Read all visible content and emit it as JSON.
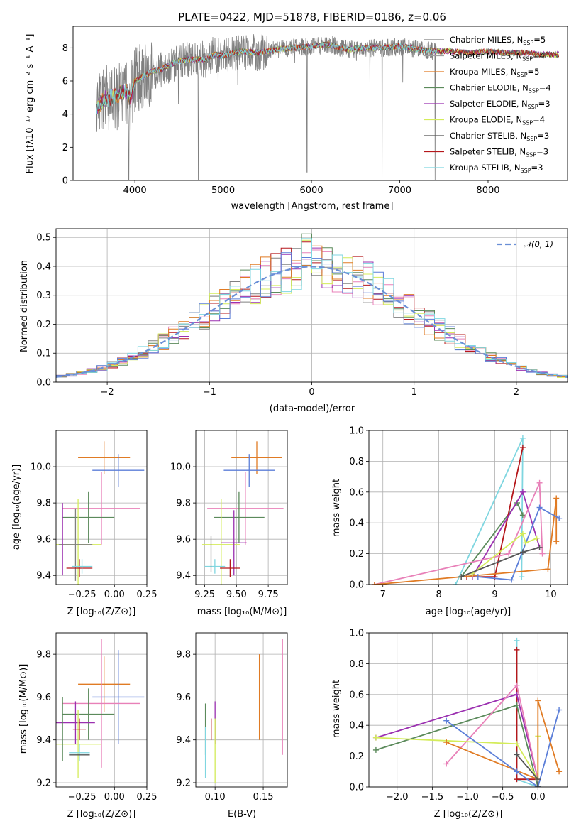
{
  "figure": {
    "title": "PLATE=0422, MJD=51878, FIBERID=0186, z=0.06",
    "colors": {
      "Chabrier MILES": "#808080",
      "Salpeter MILES": "#a0a0a0",
      "Kroupa MILES": "#e07b24",
      "Chabrier ELODIE": "#5b8a5b",
      "Salpeter ELODIE": "#9b30b0",
      "Kroupa ELODIE": "#d4ec5a",
      "Chabrier STELIB": "#555555",
      "Salpeter STELIB": "#b5171b",
      "Kroupa STELIB": "#7fd6e0",
      "pink": "#e880b8",
      "blue": "#5b7ed8",
      "normal": "#6a8fd6"
    }
  },
  "chart_data": [
    {
      "id": "spectrum",
      "type": "line",
      "xlabel": "wavelength [Angstrom, rest frame]",
      "ylabel": "Flux [fλ10⁻¹⁷ erg cm⁻² s⁻¹ A⁻¹]",
      "xlim": [
        3300,
        8900
      ],
      "ylim": [
        0,
        9.3
      ],
      "xticks": [
        "4000",
        "5000",
        "6000",
        "7000",
        "8000"
      ],
      "yticks": [
        "0",
        "2",
        "4",
        "6",
        "8"
      ],
      "grid": false,
      "legend_position": "top-right",
      "series": [
        {
          "name": "Chabrier MILES, N_SSP=5",
          "color": "#808080"
        },
        {
          "name": "Salpeter MILES, N_SSP=4",
          "color": "#a0a0a0"
        },
        {
          "name": "Kroupa MILES, N_SSP=5",
          "color": "#e07b24"
        },
        {
          "name": "Chabrier ELODIE, N_SSP=4",
          "color": "#5b8a5b"
        },
        {
          "name": "Salpeter ELODIE, N_SSP=3",
          "color": "#9b30b0"
        },
        {
          "name": "Kroupa ELODIE, N_SSP=4",
          "color": "#d4ec5a"
        },
        {
          "name": "Chabrier STELIB, N_SSP=3",
          "color": "#555555"
        },
        {
          "name": "Salpeter STELIB, N_SSP=3",
          "color": "#b5171b"
        },
        {
          "name": "Kroupa STELIB, N_SSP=3",
          "color": "#7fd6e0"
        }
      ],
      "model_continuum": {
        "x": [
          3560,
          3650,
          3700,
          3800,
          3900,
          3950,
          4000,
          4100,
          4200,
          4300,
          4400,
          4500,
          4600,
          4700,
          4800,
          4900,
          5000,
          5200,
          5400,
          5600,
          5800,
          6000,
          6200,
          6400,
          6600,
          6800,
          7000,
          7200,
          7400,
          7600,
          7800,
          8000,
          8200,
          8400,
          8600,
          8800
        ],
        "y": [
          4.3,
          4.9,
          5.0,
          5.1,
          5.4,
          4.9,
          6.0,
          6.3,
          6.6,
          6.7,
          7.0,
          7.2,
          7.3,
          7.3,
          7.3,
          7.6,
          7.5,
          7.8,
          7.7,
          7.9,
          8.0,
          8.1,
          8.2,
          7.9,
          8.0,
          8.0,
          8.1,
          7.9,
          7.8,
          7.8,
          7.7,
          7.8,
          7.7,
          7.7,
          7.6,
          7.6
        ]
      },
      "observed_x_range": [
        3560,
        7420
      ],
      "dips": [
        {
          "x": 3930,
          "y": 0.0
        },
        {
          "x": 4720,
          "y": 0.0
        },
        {
          "x": 5950,
          "y": 0.5
        },
        {
          "x": 6800,
          "y": 0.0
        },
        {
          "x": 7400,
          "y": 0.0
        }
      ]
    },
    {
      "id": "residuals",
      "type": "step-histogram",
      "xlabel": "(data-model)/error",
      "ylabel": "Normed distribution",
      "xlim": [
        -2.5,
        2.5
      ],
      "ylim": [
        0,
        0.53
      ],
      "xticks": [
        "−2",
        "−1",
        "0",
        "1",
        "2"
      ],
      "yticks": [
        "0.0",
        "0.1",
        "0.2",
        "0.3",
        "0.4",
        "0.5"
      ],
      "grid": true,
      "bin_width": 0.1,
      "legend": [
        {
          "name": "𝒩(0, 1)",
          "style": "dashed",
          "color": "#6a8fd6"
        }
      ],
      "reference_curve": "standard normal pdf",
      "seeds": [
        3,
        7,
        11,
        13,
        17,
        19,
        23,
        29,
        31
      ]
    },
    {
      "id": "age-vs-Z",
      "type": "errorbar",
      "xlabel": "Z [log₁₀(Z/Z⊙)]",
      "ylabel": "age  [log₁₀(age/yr)]",
      "xlim": [
        -0.45,
        0.25
      ],
      "ylim": [
        9.35,
        10.2
      ],
      "xticks": [
        "−0.25",
        "0.00",
        "0.25"
      ],
      "yticks": [
        "9.4",
        "9.6",
        "9.8",
        "10.0"
      ],
      "grid": true,
      "points": [
        {
          "x": -0.08,
          "y": 10.05,
          "xerr": 0.2,
          "yerr": 0.09,
          "color": "#e07b24"
        },
        {
          "x": 0.03,
          "y": 9.98,
          "xerr": 0.2,
          "yerr": 0.09,
          "color": "#5b7ed8"
        },
        {
          "x": -0.1,
          "y": 9.77,
          "xerr": 0.3,
          "yerr": 0.2,
          "color": "#e880b8"
        },
        {
          "x": -0.2,
          "y": 9.72,
          "xerr": 0.2,
          "yerr": 0.14,
          "color": "#5b8a5b"
        },
        {
          "x": -0.28,
          "y": 9.57,
          "xerr": 0.18,
          "yerr": 0.25,
          "color": "#d4ec5a"
        },
        {
          "x": -0.3,
          "y": 9.57,
          "xerr": 0.13,
          "yerr": 0.2,
          "color": "#808080"
        },
        {
          "x": -0.4,
          "y": 9.6,
          "xerr": 0.0,
          "yerr": 0.2,
          "color": "#9b30b0"
        },
        {
          "x": -0.27,
          "y": 9.44,
          "xerr": 0.1,
          "yerr": 0.05,
          "color": "#b5171b"
        },
        {
          "x": -0.25,
          "y": 9.45,
          "xerr": 0.08,
          "yerr": 0.04,
          "color": "#7fd6e0"
        }
      ]
    },
    {
      "id": "age-vs-mass",
      "type": "errorbar",
      "xlabel": "mass [log₁₀(M/M⊙)]",
      "ylabel": "",
      "xlim": [
        9.18,
        9.9
      ],
      "ylim": [
        9.35,
        10.2
      ],
      "xticks": [
        "9.25",
        "9.50",
        "9.75"
      ],
      "yticks": [
        "9.4",
        "9.6",
        "9.8",
        "10.0"
      ],
      "grid": true,
      "points": [
        {
          "x": 9.66,
          "y": 10.05,
          "xerr": 0.2,
          "yerr": 0.09,
          "color": "#e07b24"
        },
        {
          "x": 9.6,
          "y": 9.98,
          "xerr": 0.2,
          "yerr": 0.09,
          "color": "#5b7ed8"
        },
        {
          "x": 9.57,
          "y": 9.77,
          "xerr": 0.3,
          "yerr": 0.2,
          "color": "#e880b8"
        },
        {
          "x": 9.52,
          "y": 9.72,
          "xerr": 0.2,
          "yerr": 0.14,
          "color": "#5b8a5b"
        },
        {
          "x": 9.38,
          "y": 9.57,
          "xerr": 0.15,
          "yerr": 0.25,
          "color": "#d4ec5a"
        },
        {
          "x": 9.48,
          "y": 9.58,
          "xerr": 0.1,
          "yerr": 0.18,
          "color": "#9b30b0"
        },
        {
          "x": 9.45,
          "y": 9.44,
          "xerr": 0.08,
          "yerr": 0.05,
          "color": "#b5171b"
        },
        {
          "x": 9.33,
          "y": 9.45,
          "xerr": 0.08,
          "yerr": 0.04,
          "color": "#7fd6e0"
        },
        {
          "x": 9.3,
          "y": 9.52,
          "xerr": 0.0,
          "yerr": 0.1,
          "color": "#808080"
        }
      ]
    },
    {
      "id": "weight-vs-age",
      "type": "line",
      "xlabel": "age  [log₁₀(age/yr)]",
      "ylabel": "mass weight",
      "xlim": [
        6.75,
        10.3
      ],
      "ylim": [
        0,
        1.0
      ],
      "xticks": [
        "7",
        "8",
        "9",
        "10"
      ],
      "yticks": [
        "0.0",
        "0.2",
        "0.4",
        "0.6",
        "0.8",
        "1.0"
      ],
      "grid": true,
      "series": [
        {
          "color": "#7fd6e0",
          "x": [
            8.3,
            9.5,
            9.48
          ],
          "y": [
            0.0,
            0.95,
            0.05
          ]
        },
        {
          "color": "#5b8a5b",
          "x": [
            8.4,
            9.4,
            9.5
          ],
          "y": [
            0.05,
            0.53,
            0.45
          ]
        },
        {
          "color": "#b5171b",
          "x": [
            8.5,
            9.0,
            9.5
          ],
          "y": [
            0.05,
            0.05,
            0.89
          ]
        },
        {
          "color": "#9b30b0",
          "x": [
            8.6,
            9.5,
            9.8
          ],
          "y": [
            0.05,
            0.6,
            0.24
          ]
        },
        {
          "color": "#e880b8",
          "x": [
            6.85,
            9.25,
            9.8,
            9.85
          ],
          "y": [
            0.0,
            0.2,
            0.66,
            0.2
          ]
        },
        {
          "color": "#e07b24",
          "x": [
            6.85,
            9.95,
            10.1,
            10.1
          ],
          "y": [
            0.0,
            0.1,
            0.56,
            0.28
          ]
        },
        {
          "color": "#5b7ed8",
          "x": [
            8.7,
            9.3,
            9.8,
            10.15
          ],
          "y": [
            0.05,
            0.03,
            0.5,
            0.43
          ]
        },
        {
          "color": "#d4ec5a",
          "x": [
            8.6,
            9.5,
            9.55,
            9.75
          ],
          "y": [
            0.07,
            0.33,
            0.27,
            0.3
          ]
        },
        {
          "color": "#555555",
          "x": [
            8.4,
            9.5,
            9.8
          ],
          "y": [
            0.05,
            0.21,
            0.24
          ]
        }
      ]
    },
    {
      "id": "mass-vs-Z",
      "type": "errorbar",
      "xlabel": "Z [log₁₀(Z/Z⊙)]",
      "ylabel": "mass [log₁₀(M/M⊙)]",
      "xlim": [
        -0.45,
        0.25
      ],
      "ylim": [
        9.18,
        9.9
      ],
      "xticks": [
        "−0.25",
        "0.00",
        "0.25"
      ],
      "yticks": [
        "9.2",
        "9.4",
        "9.6",
        "9.8"
      ],
      "grid": true,
      "points": [
        {
          "x": -0.08,
          "y": 9.66,
          "xerr": 0.2,
          "yerr": 0.13,
          "color": "#e07b24"
        },
        {
          "x": 0.03,
          "y": 9.6,
          "xerr": 0.2,
          "yerr": 0.22,
          "color": "#5b7ed8"
        },
        {
          "x": -0.1,
          "y": 9.57,
          "xerr": 0.3,
          "yerr": 0.3,
          "color": "#e880b8"
        },
        {
          "x": -0.2,
          "y": 9.52,
          "xerr": 0.2,
          "yerr": 0.12,
          "color": "#5b8a5b"
        },
        {
          "x": -0.3,
          "y": 9.48,
          "xerr": 0.15,
          "yerr": 0.1,
          "color": "#9b30b0"
        },
        {
          "x": -0.28,
          "y": 9.38,
          "xerr": 0.18,
          "yerr": 0.16,
          "color": "#d4ec5a"
        },
        {
          "x": -0.27,
          "y": 9.45,
          "xerr": 0.05,
          "yerr": 0.05,
          "color": "#b5171b"
        },
        {
          "x": -0.27,
          "y": 9.34,
          "xerr": 0.08,
          "yerr": 0.04,
          "color": "#7fd6e0"
        },
        {
          "x": -0.4,
          "y": 9.45,
          "xerr": 0.0,
          "yerr": 0.15,
          "color": "#5b8a5b"
        },
        {
          "x": -0.27,
          "y": 9.33,
          "xerr": 0.08,
          "yerr": 0.0,
          "color": "#555555"
        }
      ]
    },
    {
      "id": "mass-vs-EBV",
      "type": "errorbar",
      "xlabel": "E(B-V)",
      "ylabel": "",
      "xlim": [
        0.08,
        0.175
      ],
      "ylim": [
        9.18,
        9.9
      ],
      "xticks": [
        "0.10",
        "0.15"
      ],
      "yticks": [
        "9.2",
        "9.4",
        "9.6",
        "9.8"
      ],
      "grid": true,
      "points": [
        {
          "x": 0.146,
          "y": 9.6,
          "xerr": 0,
          "yerr": 0.2,
          "color": "#e07b24"
        },
        {
          "x": 0.17,
          "y": 9.6,
          "xerr": 0,
          "yerr": 0.27,
          "color": "#e880b8"
        },
        {
          "x": 0.1,
          "y": 9.48,
          "xerr": 0,
          "yerr": 0.1,
          "color": "#9b30b0"
        },
        {
          "x": 0.1,
          "y": 9.35,
          "xerr": 0,
          "yerr": 0.15,
          "color": "#d4ec5a"
        },
        {
          "x": 0.096,
          "y": 9.45,
          "xerr": 0,
          "yerr": 0.05,
          "color": "#b5171b"
        },
        {
          "x": 0.09,
          "y": 9.45,
          "xerr": 0,
          "yerr": 0.12,
          "color": "#5b8a5b"
        },
        {
          "x": 0.09,
          "y": 9.34,
          "xerr": 0,
          "yerr": 0.12,
          "color": "#7fd6e0"
        }
      ]
    },
    {
      "id": "weight-vs-Z",
      "type": "line",
      "xlabel": "Z [log₁₀(Z/Z⊙)]",
      "ylabel": "mass weight",
      "xlim": [
        -2.4,
        0.42
      ],
      "ylim": [
        0,
        1.0
      ],
      "xticks": [
        "−2.0",
        "−1.5",
        "−1.0",
        "−0.5",
        "0.0"
      ],
      "yticks": [
        "0.0",
        "0.2",
        "0.4",
        "0.6",
        "0.8",
        "1.0"
      ],
      "grid": true,
      "series": [
        {
          "color": "#7fd6e0",
          "x": [
            -0.3,
            -0.3,
            0.0
          ],
          "y": [
            0.95,
            0.05,
            0.0
          ]
        },
        {
          "color": "#b5171b",
          "x": [
            -0.3,
            -0.3,
            0.0,
            0.0
          ],
          "y": [
            0.89,
            0.05,
            0.05,
            0.05
          ]
        },
        {
          "color": "#9b30b0",
          "x": [
            -2.3,
            -0.3,
            0.0
          ],
          "y": [
            0.32,
            0.6,
            0.05
          ]
        },
        {
          "color": "#5b8a5b",
          "x": [
            -2.3,
            -0.3,
            0.0
          ],
          "y": [
            0.24,
            0.53,
            0.0
          ]
        },
        {
          "color": "#e880b8",
          "x": [
            -1.3,
            -0.3,
            0.0
          ],
          "y": [
            0.15,
            0.66,
            0.05
          ]
        },
        {
          "color": "#d4ec5a",
          "x": [
            -2.3,
            -0.3,
            0.0,
            0.0
          ],
          "y": [
            0.32,
            0.28,
            0.05,
            0.33
          ]
        },
        {
          "color": "#e07b24",
          "x": [
            -1.3,
            0.0,
            0.0,
            0.3
          ],
          "y": [
            0.29,
            0.05,
            0.56,
            0.1
          ]
        },
        {
          "color": "#5b7ed8",
          "x": [
            -1.3,
            -0.3,
            0.0,
            0.3
          ],
          "y": [
            0.43,
            0.1,
            0.0,
            0.5
          ]
        },
        {
          "color": "#555555",
          "x": [
            -0.3,
            0.0,
            0.0
          ],
          "y": [
            0.21,
            0.05,
            0.0
          ]
        }
      ]
    }
  ]
}
